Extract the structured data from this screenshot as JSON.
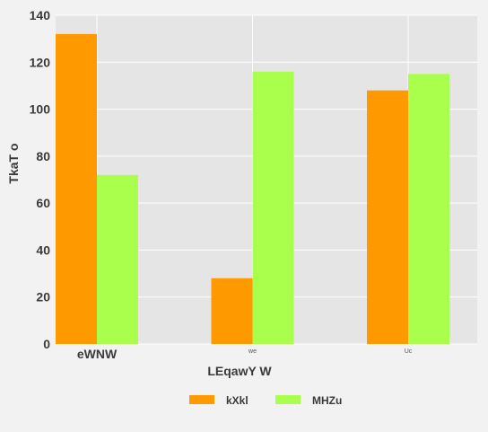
{
  "chart_data": {
    "type": "bar",
    "title": "",
    "xlabel": "LEqawY W",
    "ylabel": "TkaT o",
    "categories": [
      "eWNW",
      "we",
      "Uc"
    ],
    "category_label_sizes": [
      "large",
      "small",
      "small"
    ],
    "series": [
      {
        "name": "kXkl",
        "color": "#ff9900",
        "values": [
          132,
          28,
          108
        ]
      },
      {
        "name": "MHZu",
        "color": "#aaff4c",
        "values": [
          72,
          116,
          115
        ]
      }
    ],
    "ylim": [
      0,
      140
    ],
    "yticks": [
      0,
      20,
      40,
      60,
      80,
      100,
      120,
      140
    ],
    "grid": true,
    "legend_position": "bottom-center",
    "plot_background": "#e5e5e5",
    "grid_color": "#ffffff"
  }
}
